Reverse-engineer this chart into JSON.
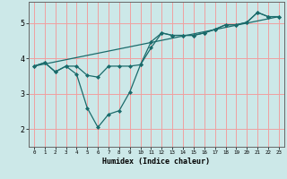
{
  "title": "",
  "xlabel": "Humidex (Indice chaleur)",
  "ylabel": "",
  "bg_color": "#cce8e8",
  "grid_color": "#f0a0a0",
  "line_color": "#1a6b6b",
  "xlim": [
    -0.5,
    23.5
  ],
  "ylim": [
    1.5,
    5.6
  ],
  "xticks": [
    0,
    1,
    2,
    3,
    4,
    5,
    6,
    7,
    8,
    9,
    10,
    11,
    12,
    13,
    14,
    15,
    16,
    17,
    18,
    19,
    20,
    21,
    22,
    23
  ],
  "yticks": [
    2,
    3,
    4,
    5
  ],
  "line1_x": [
    0,
    1,
    2,
    3,
    4,
    5,
    6,
    7,
    8,
    9,
    10,
    11,
    12,
    13,
    14,
    15,
    16,
    17,
    18,
    19,
    20,
    21,
    22,
    23
  ],
  "line1_y": [
    3.78,
    3.88,
    3.62,
    3.78,
    3.78,
    3.52,
    3.47,
    3.78,
    3.78,
    3.78,
    3.82,
    4.47,
    4.72,
    4.65,
    4.65,
    4.65,
    4.72,
    4.82,
    4.95,
    4.95,
    5.02,
    5.3,
    5.18,
    5.18
  ],
  "line2_x": [
    0,
    1,
    2,
    3,
    4,
    5,
    6,
    7,
    8,
    9,
    10,
    11,
    12,
    13,
    14,
    15,
    16,
    17,
    18,
    19,
    20,
    21,
    22,
    23
  ],
  "line2_y": [
    3.78,
    3.88,
    3.62,
    3.78,
    3.55,
    2.6,
    2.05,
    2.42,
    2.52,
    3.05,
    3.82,
    4.3,
    4.72,
    4.65,
    4.65,
    4.65,
    4.72,
    4.82,
    4.95,
    4.95,
    5.02,
    5.3,
    5.18,
    5.18
  ],
  "line3_x": [
    0,
    23
  ],
  "line3_y": [
    3.78,
    5.18
  ]
}
